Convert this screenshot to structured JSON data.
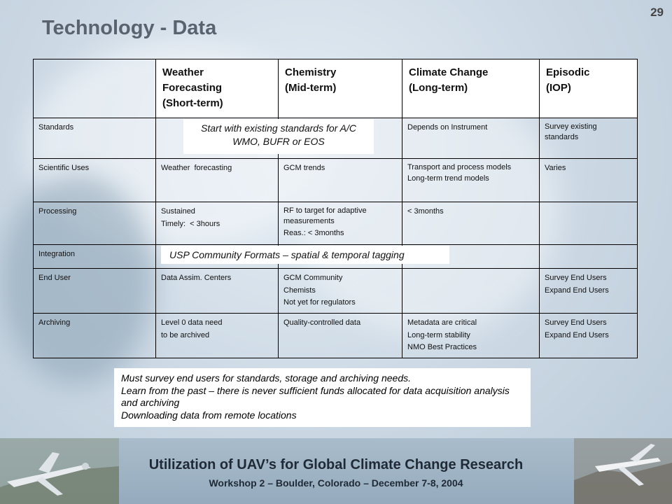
{
  "slide_number": "29",
  "title": "Technology - Data",
  "headers": [
    {
      "lines": [
        "Weather",
        "Forecasting",
        "(Short-term)"
      ]
    },
    {
      "lines": [
        "Chemistry",
        "(Mid-term)"
      ]
    },
    {
      "lines": [
        "Climate Change",
        "(Long-term)"
      ]
    },
    {
      "lines": [
        "Episodic",
        "(IOP)"
      ]
    }
  ],
  "rows": [
    {
      "label": "Standards",
      "cells": [
        [],
        [],
        [
          "Depends on Instrument"
        ],
        [
          "Survey existing standards"
        ]
      ]
    },
    {
      "label": "Scientific Uses",
      "cells": [
        [
          "Weather  forecasting"
        ],
        [
          "GCM trends"
        ],
        [
          "Transport and process models",
          "Long-term trend models"
        ],
        [
          "Varies"
        ]
      ]
    },
    {
      "label": "Processing",
      "cells": [
        [
          "Sustained",
          "Timely:  < 3hours"
        ],
        [
          "RF to target for adaptive measurements",
          "Reas.: < 3months"
        ],
        [
          "< 3months"
        ],
        []
      ]
    },
    {
      "label": "Integration",
      "cells": [
        [],
        [],
        [],
        []
      ]
    },
    {
      "label": "End User",
      "cells": [
        [
          "Data Assim. Centers"
        ],
        [
          "GCM Community",
          "Chemists",
          "Not yet for regulators"
        ],
        [],
        [
          "Survey End Users",
          "Expand End Users"
        ]
      ]
    },
    {
      "label": "Archiving",
      "cells": [
        [
          "Level 0 data need",
          "to be archived"
        ],
        [
          "Quality-controlled data"
        ],
        [
          "Metadata are critical",
          "Long-term stability",
          "NMO Best Practices"
        ],
        [
          "Survey End Users",
          "Expand End Users"
        ]
      ]
    }
  ],
  "overlays": {
    "standards": [
      "Start with existing standards for A/C",
      "WMO, BUFR or EOS"
    ],
    "integration": "USP Community Formats – spatial & temporal tagging"
  },
  "notes": [
    "Must survey end users for standards, storage and archiving needs.",
    "Learn from the past – there is never sufficient funds allocated for data acquisition analysis and archiving",
    "Downloading data from remote locations"
  ],
  "footer": {
    "title": "Utilization of UAV’s for Global Climate Change Research",
    "subtitle": "Workshop 2 – Boulder, Colorado – December 7-8, 2004"
  }
}
